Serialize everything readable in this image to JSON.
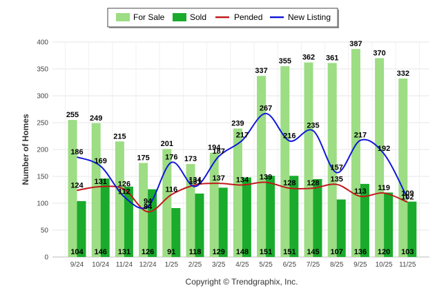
{
  "chart_data": {
    "type": "bar",
    "title": "",
    "xlabel": "",
    "ylabel": "Number of Homes",
    "ylim": [
      0,
      400
    ],
    "yticks": [
      0,
      50,
      100,
      150,
      200,
      250,
      300,
      350,
      400
    ],
    "categories": [
      "9/24",
      "10/24",
      "11/24",
      "12/24",
      "1/25",
      "2/25",
      "3/25",
      "4/25",
      "5/25",
      "6/25",
      "7/25",
      "8/25",
      "9/25",
      "10/25",
      "11/25"
    ],
    "series": [
      {
        "name": "For Sale",
        "kind": "bar",
        "color": "#9ddd84",
        "values": [
          255,
          249,
          215,
          175,
          201,
          173,
          194,
          239,
          337,
          355,
          362,
          361,
          387,
          370,
          332
        ]
      },
      {
        "name": "Sold",
        "kind": "bar",
        "color": "#1aab2c",
        "values": [
          104,
          146,
          131,
          126,
          91,
          118,
          129,
          148,
          151,
          151,
          145,
          107,
          136,
          120,
          103
        ]
      },
      {
        "name": "Pended",
        "kind": "line",
        "color": "#c0191b",
        "values": [
          124,
          131,
          126,
          84,
          116,
          134,
          137,
          134,
          139,
          128,
          128,
          135,
          113,
          119,
          102
        ]
      },
      {
        "name": "New Listing",
        "kind": "line",
        "color": "#1018d8",
        "values": [
          186,
          169,
          112,
          94,
          176,
          131,
          187,
          217,
          267,
          216,
          235,
          157,
          217,
          192,
          109
        ]
      }
    ],
    "legend_position": "top-center",
    "grid": true
  },
  "copyright": "Copyright © Trendgraphix, Inc."
}
